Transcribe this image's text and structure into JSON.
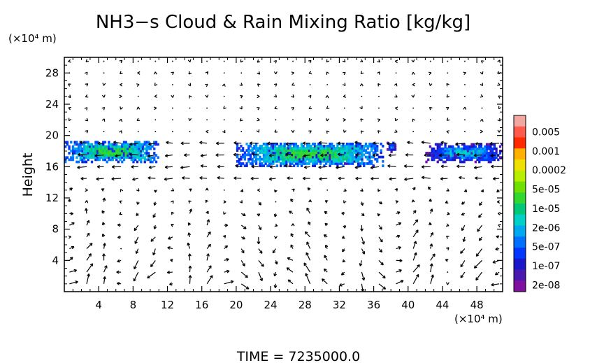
{
  "chart_data": {
    "type": "heatmap",
    "title": "NH3−s Cloud & Rain Mixing Ratio [kg/kg]",
    "ylabel": "Height",
    "y_unit": "(×10⁴ m)",
    "x_unit": "(×10⁴ m)",
    "xlim": [
      0,
      51
    ],
    "ylim": [
      0,
      30
    ],
    "x_ticks": [
      4,
      8,
      12,
      16,
      20,
      24,
      28,
      32,
      36,
      40,
      44,
      48
    ],
    "y_ticks": [
      4,
      8,
      12,
      16,
      20,
      24,
      28
    ],
    "colorbar_labels": [
      "0.005",
      "0.001",
      "0.0002",
      "5e-05",
      "1e-05",
      "2e-06",
      "5e-07",
      "1e-07",
      "2e-08"
    ],
    "colorbar_colors": [
      "#f4a6a0",
      "#ff5a4a",
      "#ff2a00",
      "#ffb000",
      "#f0e000",
      "#b8ee00",
      "#70e000",
      "#30d830",
      "#00c878",
      "#00d0c8",
      "#00a8f0",
      "#0070ff",
      "#0038ff",
      "#1818c8",
      "#4818b0",
      "#8010a0"
    ],
    "cloud_layers": [
      {
        "x_range": [
          0,
          11
        ],
        "y_range": [
          16.5,
          19.2
        ],
        "level": "1e-05"
      },
      {
        "x_range": [
          20,
          37
        ],
        "y_range": [
          16.0,
          19.0
        ],
        "level": "1e-05"
      },
      {
        "x_range": [
          37.5,
          38.5
        ],
        "y_range": [
          17.8,
          19.0
        ],
        "level": "1e-07"
      },
      {
        "x_range": [
          42,
          51
        ],
        "y_range": [
          16.5,
          18.8
        ],
        "level": "5e-07"
      }
    ],
    "wind_vectors": "shown",
    "time_label": "TIME  =  7235000.0"
  }
}
